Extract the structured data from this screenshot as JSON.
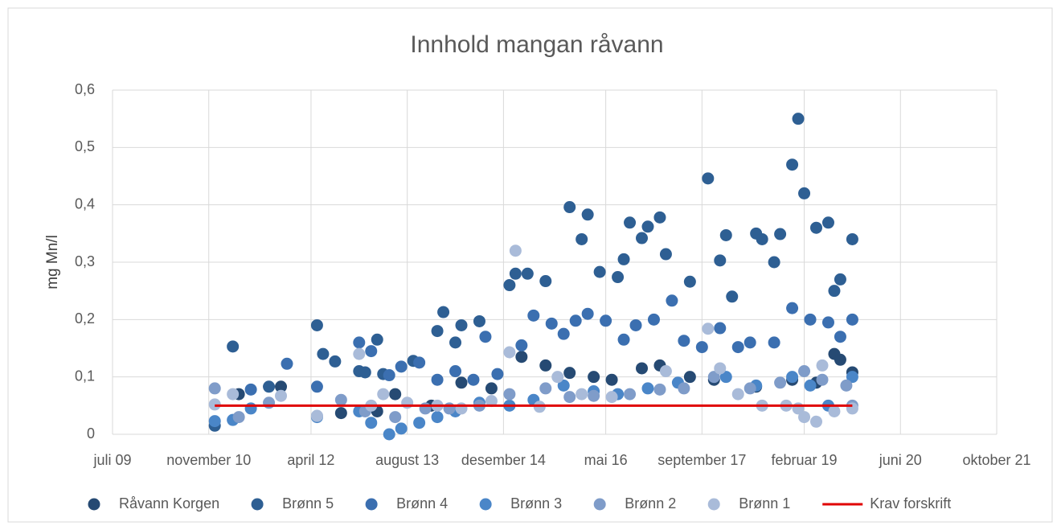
{
  "chart_data": {
    "type": "scatter",
    "title": "Innhold mangan råvann",
    "y_label": "mg Mn/l",
    "xlim": [
      "2009-07",
      "2021-10"
    ],
    "xticks": [
      {
        "value": "2009-07",
        "label": "juli 09"
      },
      {
        "value": "2010-11",
        "label": "november 10"
      },
      {
        "value": "2012-04",
        "label": "april 12"
      },
      {
        "value": "2013-08",
        "label": "august 13"
      },
      {
        "value": "2014-12",
        "label": "desember 14"
      },
      {
        "value": "2016-05",
        "label": "mai 16"
      },
      {
        "value": "2017-09",
        "label": "september 17"
      },
      {
        "value": "2019-02",
        "label": "februar 19"
      },
      {
        "value": "2020-06",
        "label": "juni 20"
      },
      {
        "value": "2021-10",
        "label": "oktober 21"
      }
    ],
    "ylim": [
      0,
      0.6
    ],
    "yticks": [
      0,
      {
        "value": 0.1,
        "label": "0,1"
      },
      {
        "value": 0.2,
        "label": "0,2"
      },
      {
        "value": 0.3,
        "label": "0,3"
      },
      {
        "value": 0.4,
        "label": "0,4"
      },
      {
        "value": 0.5,
        "label": "0,5"
      },
      {
        "value": 0.6,
        "label": "0,6"
      }
    ],
    "grid": true,
    "legend": "bottom",
    "series": [
      {
        "name": "Råvann Korgen",
        "color": "#264a73",
        "type": "scatter",
        "x": [
          "2011-04",
          "2011-11",
          "2012-09",
          "2013-03",
          "2013-06",
          "2013-12",
          "2014-05",
          "2014-10",
          "2015-03",
          "2015-07",
          "2015-11",
          "2016-03",
          "2016-06",
          "2016-11",
          "2017-02",
          "2017-07",
          "2017-11",
          "2018-06",
          "2018-12",
          "2019-04",
          "2019-07",
          "2019-08",
          "2019-10"
        ],
        "values": [
          0.07,
          0.083,
          0.037,
          0.04,
          0.07,
          0.05,
          0.09,
          0.08,
          0.135,
          0.12,
          0.107,
          0.1,
          0.095,
          0.115,
          0.12,
          0.1,
          0.095,
          0.083,
          0.095,
          0.09,
          0.14,
          0.13,
          0.108
        ]
      },
      {
        "name": "Brønn 5",
        "color": "#2e5f93",
        "type": "scatter",
        "x": [
          "2010-12",
          "2011-03",
          "2011-09",
          "2012-05",
          "2012-06",
          "2012-08",
          "2012-12",
          "2013-01",
          "2013-03",
          "2013-04",
          "2013-09",
          "2014-01",
          "2014-02",
          "2014-04",
          "2014-05",
          "2014-08",
          "2015-01",
          "2015-02",
          "2015-04",
          "2015-07",
          "2015-11",
          "2016-01",
          "2016-02",
          "2016-04",
          "2016-07",
          "2016-08",
          "2016-09",
          "2016-11",
          "2016-12",
          "2017-02",
          "2017-03",
          "2017-07",
          "2017-10",
          "2017-12",
          "2018-01",
          "2018-02",
          "2018-06",
          "2018-07",
          "2018-09",
          "2018-10",
          "2018-12",
          "2019-01",
          "2019-02",
          "2019-04",
          "2019-06",
          "2019-07",
          "2019-08",
          "2019-10"
        ],
        "values": [
          0.015,
          0.153,
          0.083,
          0.19,
          0.14,
          0.127,
          0.11,
          0.108,
          0.165,
          0.105,
          0.128,
          0.18,
          0.213,
          0.16,
          0.19,
          0.197,
          0.26,
          0.28,
          0.28,
          0.267,
          0.396,
          0.34,
          0.383,
          0.283,
          0.274,
          0.305,
          0.369,
          0.342,
          0.362,
          0.378,
          0.314,
          0.266,
          0.446,
          0.303,
          0.347,
          0.24,
          0.35,
          0.34,
          0.3,
          0.349,
          0.47,
          0.55,
          0.42,
          0.36,
          0.369,
          0.25,
          0.27,
          0.34
        ]
      },
      {
        "name": "Brønn 4",
        "color": "#3b6fb0",
        "type": "scatter",
        "x": [
          "2011-06",
          "2011-12",
          "2012-05",
          "2012-12",
          "2013-02",
          "2013-05",
          "2013-07",
          "2013-10",
          "2014-01",
          "2014-04",
          "2014-07",
          "2014-09",
          "2014-11",
          "2015-03",
          "2015-05",
          "2015-08",
          "2015-10",
          "2015-12",
          "2016-02",
          "2016-05",
          "2016-08",
          "2016-10",
          "2017-01",
          "2017-04",
          "2017-06",
          "2017-09",
          "2017-12",
          "2018-03",
          "2018-05",
          "2018-09",
          "2018-12",
          "2019-03",
          "2019-06",
          "2019-08",
          "2019-10"
        ],
        "values": [
          0.078,
          0.123,
          0.083,
          0.16,
          0.145,
          0.103,
          0.118,
          0.125,
          0.095,
          0.11,
          0.095,
          0.17,
          0.105,
          0.155,
          0.207,
          0.193,
          0.175,
          0.198,
          0.21,
          0.198,
          0.165,
          0.19,
          0.2,
          0.233,
          0.163,
          0.152,
          0.185,
          0.152,
          0.16,
          0.16,
          0.22,
          0.2,
          0.195,
          0.17,
          0.2
        ]
      },
      {
        "name": "Brønn 3",
        "color": "#4a86c8",
        "type": "scatter",
        "x": [
          "2010-12",
          "2011-03",
          "2011-06",
          "2012-05",
          "2012-12",
          "2013-02",
          "2013-05",
          "2013-07",
          "2013-10",
          "2014-01",
          "2014-04",
          "2014-08",
          "2015-01",
          "2015-05",
          "2015-10",
          "2016-03",
          "2016-07",
          "2016-12",
          "2017-05",
          "2018-01",
          "2018-06",
          "2018-12",
          "2019-03",
          "2019-06",
          "2019-10"
        ],
        "values": [
          0.023,
          0.025,
          0.045,
          0.03,
          0.04,
          0.02,
          0.0,
          0.01,
          0.02,
          0.03,
          0.04,
          0.055,
          0.05,
          0.06,
          0.085,
          0.075,
          0.07,
          0.08,
          0.09,
          0.1,
          0.085,
          0.1,
          0.085,
          0.05,
          0.1
        ]
      },
      {
        "name": "Brønn 2",
        "color": "#7f9cc9",
        "type": "scatter",
        "x": [
          "2010-12",
          "2011-04",
          "2011-09",
          "2012-05",
          "2012-09",
          "2013-01",
          "2013-06",
          "2013-11",
          "2014-03",
          "2014-08",
          "2015-01",
          "2015-07",
          "2015-11",
          "2016-03",
          "2016-09",
          "2017-02",
          "2017-06",
          "2017-11",
          "2018-05",
          "2018-10",
          "2019-02",
          "2019-05",
          "2019-09",
          "2019-10"
        ],
        "values": [
          0.08,
          0.03,
          0.055,
          0.032,
          0.06,
          0.04,
          0.03,
          0.045,
          0.045,
          0.05,
          0.07,
          0.08,
          0.065,
          0.067,
          0.07,
          0.078,
          0.08,
          0.1,
          0.08,
          0.09,
          0.11,
          0.095,
          0.085,
          0.05
        ]
      },
      {
        "name": "Brønn 1",
        "color": "#a9bbd9",
        "type": "scatter",
        "x": [
          "2010-12",
          "2011-03",
          "2011-11",
          "2012-05",
          "2012-12",
          "2013-02",
          "2013-04",
          "2013-08",
          "2014-01",
          "2014-05",
          "2014-10",
          "2015-02",
          "2015-01",
          "2015-06",
          "2015-09",
          "2016-01",
          "2016-06",
          "2017-03",
          "2017-10",
          "2017-12",
          "2018-03",
          "2018-07",
          "2018-11",
          "2019-01",
          "2019-02",
          "2019-04",
          "2019-05",
          "2019-07",
          "2019-10"
        ],
        "values": [
          0.052,
          0.07,
          0.067,
          0.032,
          0.14,
          0.05,
          0.07,
          0.055,
          0.05,
          0.045,
          0.058,
          0.32,
          0.143,
          0.048,
          0.1,
          0.07,
          0.065,
          0.11,
          0.184,
          0.115,
          0.07,
          0.05,
          0.05,
          0.045,
          0.03,
          0.022,
          0.12,
          0.04,
          0.045
        ]
      },
      {
        "name": "Krav forskrift",
        "color": "#e00000",
        "type": "line",
        "x": [
          "2010-12",
          "2019-10"
        ],
        "values": [
          0.05,
          0.05
        ]
      }
    ]
  }
}
